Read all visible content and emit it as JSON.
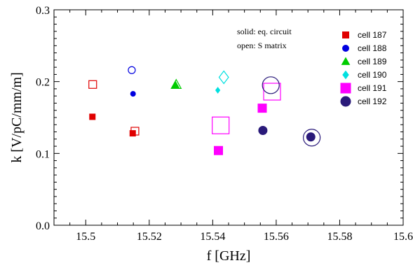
{
  "chart_data": {
    "type": "scatter",
    "title": "",
    "xlabel": "f [GHz]",
    "ylabel": "k  [V/pC/mm/m]",
    "xlim": [
      15.49,
      15.6
    ],
    "ylim": [
      0.0,
      0.3
    ],
    "x_ticks": [
      15.5,
      15.52,
      15.54,
      15.56,
      15.58,
      15.6
    ],
    "x_tick_labels": [
      "15.5",
      "15.52",
      "15.54",
      "15.56",
      "15.58",
      "15.6"
    ],
    "y_ticks": [
      0.0,
      0.1,
      0.2,
      0.3
    ],
    "y_tick_labels": [
      "0.0",
      "0.1",
      "0.2",
      "0.3"
    ],
    "grid": false,
    "legend_position": "top-right",
    "annotations": [
      "solid: eq. circuit",
      "open: S matrix"
    ],
    "series": [
      {
        "name": "cell 187",
        "color": "#e00000",
        "marker": "square",
        "solid": [
          {
            "x": 15.5021,
            "y": 0.151
          },
          {
            "x": 15.5148,
            "y": 0.128
          }
        ],
        "open": [
          {
            "x": 15.5022,
            "y": 0.196
          },
          {
            "x": 15.5155,
            "y": 0.131
          }
        ]
      },
      {
        "name": "cell 188",
        "color": "#0000e0",
        "marker": "circle",
        "solid": [
          {
            "x": 15.5149,
            "y": 0.183
          }
        ],
        "open": [
          {
            "x": 15.5145,
            "y": 0.216
          }
        ]
      },
      {
        "name": "cell 189",
        "color": "#00cc00",
        "marker": "triangle",
        "solid": [
          {
            "x": 15.5283,
            "y": 0.195
          }
        ],
        "open": [
          {
            "x": 15.5285,
            "y": 0.196
          }
        ]
      },
      {
        "name": "cell 190",
        "color": "#00e0e0",
        "marker": "diamond",
        "solid": [
          {
            "x": 15.5416,
            "y": 0.188
          }
        ],
        "open": [
          {
            "x": 15.5435,
            "y": 0.206
          }
        ]
      },
      {
        "name": "cell 191",
        "color": "#ff00ff",
        "marker": "square-large",
        "solid": [
          {
            "x": 15.5418,
            "y": 0.104
          },
          {
            "x": 15.5556,
            "y": 0.163
          }
        ],
        "open": [
          {
            "x": 15.5425,
            "y": 0.139
          },
          {
            "x": 15.5587,
            "y": 0.186
          }
        ]
      },
      {
        "name": "cell 192",
        "color": "#2a1a7a",
        "marker": "circle-large",
        "solid": [
          {
            "x": 15.5558,
            "y": 0.132
          },
          {
            "x": 15.5709,
            "y": 0.123
          }
        ],
        "open": [
          {
            "x": 15.5583,
            "y": 0.195
          },
          {
            "x": 15.5712,
            "y": 0.122
          }
        ]
      }
    ]
  }
}
